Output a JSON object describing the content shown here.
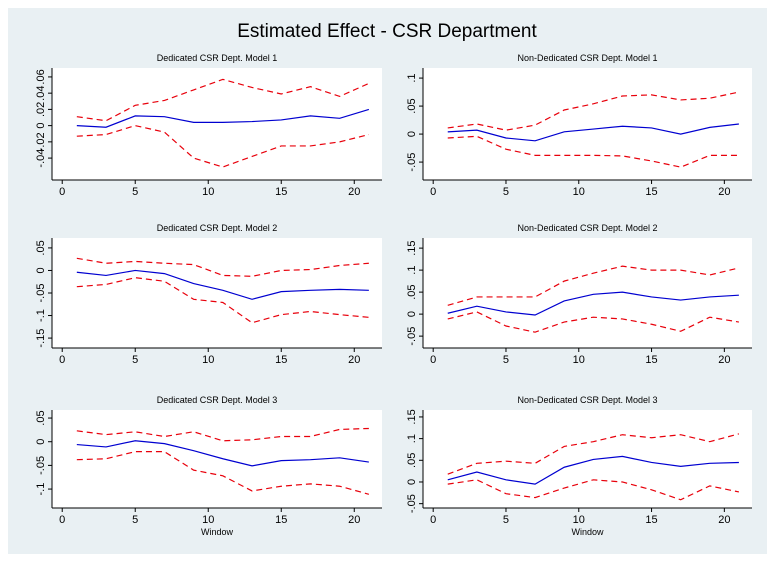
{
  "title": "Estimated Effect - CSR Department",
  "chart_data": [
    {
      "type": "line",
      "title": "Dedicated CSR Dept. Model 1",
      "x": [
        1,
        3,
        5,
        7,
        9,
        11,
        13,
        15,
        17,
        19,
        21
      ],
      "xlim": [
        -0.7,
        21.9
      ],
      "xticks": [
        0,
        5,
        10,
        15,
        20
      ],
      "ylim": [
        -0.067,
        0.071
      ],
      "yticks": [
        {
          "value": -0.04,
          "label": "-.04"
        },
        {
          "value": -0.02,
          "label": "-.02"
        },
        0,
        {
          "value": 0.02,
          "label": ".02"
        },
        {
          "value": 0.04,
          "label": ".04"
        },
        {
          "value": 0.06,
          "label": ".06"
        }
      ],
      "series": [
        {
          "color": "#e8000b",
          "dashed": true,
          "values": [
            0.011,
            0.006,
            0.025,
            0.031,
            0.044,
            0.057,
            0.047,
            0.039,
            0.048,
            0.036,
            0.052
          ]
        },
        {
          "color": "#0000d0",
          "dashed": false,
          "values": [
            0.0,
            -0.002,
            0.012,
            0.011,
            0.004,
            0.004,
            0.005,
            0.007,
            0.012,
            0.009,
            0.02
          ]
        },
        {
          "color": "#e8000b",
          "dashed": true,
          "values": [
            -0.013,
            -0.011,
            0.0,
            -0.008,
            -0.04,
            -0.051,
            -0.038,
            -0.025,
            -0.025,
            -0.02,
            -0.011
          ]
        }
      ]
    },
    {
      "type": "line",
      "title": "Non-Dedicated CSR Dept. Model 1",
      "x": [
        1,
        3,
        5,
        7,
        9,
        11,
        13,
        15,
        17,
        19,
        21
      ],
      "xlim": [
        -0.7,
        21.9
      ],
      "xticks": [
        0,
        5,
        10,
        15,
        20
      ],
      "ylim": [
        -0.082,
        0.118
      ],
      "yticks": [
        {
          "value": -0.05,
          "label": "-.05"
        },
        0,
        {
          "value": 0.05,
          "label": ".05"
        },
        {
          "value": 0.1,
          "label": ".1"
        }
      ],
      "series": [
        {
          "color": "#e8000b",
          "dashed": true,
          "values": [
            0.011,
            0.018,
            0.007,
            0.016,
            0.043,
            0.054,
            0.068,
            0.07,
            0.061,
            0.064,
            0.075
          ]
        },
        {
          "color": "#0000d0",
          "dashed": false,
          "values": [
            0.004,
            0.007,
            -0.007,
            -0.012,
            0.004,
            0.009,
            0.014,
            0.011,
            0.0,
            0.012,
            0.018
          ]
        },
        {
          "color": "#e8000b",
          "dashed": true,
          "values": [
            -0.007,
            -0.004,
            -0.027,
            -0.038,
            -0.038,
            -0.038,
            -0.039,
            -0.048,
            -0.059,
            -0.038,
            -0.038
          ]
        }
      ]
    },
    {
      "type": "line",
      "title": "Dedicated CSR Dept. Model 2",
      "x": [
        1,
        3,
        5,
        7,
        9,
        11,
        13,
        15,
        17,
        19,
        21
      ],
      "xlim": [
        -0.7,
        21.9
      ],
      "xticks": [
        0,
        5,
        10,
        15,
        20
      ],
      "ylim": [
        -0.172,
        0.072
      ],
      "yticks": [
        {
          "value": -0.15,
          "label": "-.15"
        },
        {
          "value": -0.1,
          "label": "-.1"
        },
        {
          "value": -0.05,
          "label": "-.05"
        },
        0,
        {
          "value": 0.05,
          "label": ".05"
        }
      ],
      "series": [
        {
          "color": "#e8000b",
          "dashed": true,
          "values": [
            0.027,
            0.016,
            0.02,
            0.016,
            0.013,
            -0.011,
            -0.013,
            0.0,
            0.002,
            0.011,
            0.016
          ]
        },
        {
          "color": "#0000d0",
          "dashed": false,
          "values": [
            -0.004,
            -0.011,
            0.0,
            -0.007,
            -0.029,
            -0.044,
            -0.064,
            -0.047,
            -0.044,
            -0.042,
            -0.044
          ]
        },
        {
          "color": "#e8000b",
          "dashed": true,
          "values": [
            -0.036,
            -0.031,
            -0.016,
            -0.024,
            -0.064,
            -0.071,
            -0.116,
            -0.098,
            -0.091,
            -0.098,
            -0.104
          ]
        }
      ]
    },
    {
      "type": "line",
      "title": "Non-Dedicated CSR Dept. Model 2",
      "x": [
        1,
        3,
        5,
        7,
        9,
        11,
        13,
        15,
        17,
        19,
        21
      ],
      "xlim": [
        -0.7,
        21.9
      ],
      "xticks": [
        0,
        5,
        10,
        15,
        20
      ],
      "ylim": [
        -0.077,
        0.173
      ],
      "yticks": [
        {
          "value": -0.05,
          "label": "-.05"
        },
        0,
        {
          "value": 0.05,
          "label": ".05"
        },
        {
          "value": 0.1,
          "label": ".1"
        },
        {
          "value": 0.15,
          "label": ".15"
        }
      ],
      "series": [
        {
          "color": "#e8000b",
          "dashed": true,
          "values": [
            0.02,
            0.039,
            0.039,
            0.039,
            0.075,
            0.093,
            0.109,
            0.1,
            0.1,
            0.089,
            0.105
          ]
        },
        {
          "color": "#0000d0",
          "dashed": false,
          "values": [
            0.002,
            0.018,
            0.005,
            -0.002,
            0.03,
            0.045,
            0.05,
            0.039,
            0.032,
            0.039,
            0.043
          ]
        },
        {
          "color": "#e8000b",
          "dashed": true,
          "values": [
            -0.011,
            0.005,
            -0.027,
            -0.041,
            -0.018,
            -0.007,
            -0.011,
            -0.023,
            -0.039,
            -0.007,
            -0.018
          ]
        }
      ]
    },
    {
      "type": "line",
      "title": "Dedicated CSR Dept. Model 3",
      "xlabel": "Window",
      "x": [
        1,
        3,
        5,
        7,
        9,
        11,
        13,
        15,
        17,
        19,
        21
      ],
      "xlim": [
        -0.7,
        21.9
      ],
      "xticks": [
        0,
        5,
        10,
        15,
        20
      ],
      "ylim": [
        -0.14,
        0.067
      ],
      "yticks": [
        {
          "value": -0.1,
          "label": "-.1"
        },
        {
          "value": -0.05,
          "label": "-.05"
        },
        0,
        {
          "value": 0.05,
          "label": ".05"
        }
      ],
      "series": [
        {
          "color": "#e8000b",
          "dashed": true,
          "values": [
            0.023,
            0.015,
            0.021,
            0.011,
            0.021,
            0.002,
            0.004,
            0.011,
            0.011,
            0.026,
            0.028
          ]
        },
        {
          "color": "#0000d0",
          "dashed": false,
          "values": [
            -0.006,
            -0.011,
            0.002,
            -0.004,
            -0.019,
            -0.036,
            -0.051,
            -0.04,
            -0.038,
            -0.034,
            -0.043
          ]
        },
        {
          "color": "#e8000b",
          "dashed": true,
          "values": [
            -0.038,
            -0.036,
            -0.021,
            -0.021,
            -0.06,
            -0.072,
            -0.104,
            -0.094,
            -0.089,
            -0.094,
            -0.111
          ]
        }
      ]
    },
    {
      "type": "line",
      "title": "Non-Dedicated CSR Dept. Model 3",
      "xlabel": "Window",
      "x": [
        1,
        3,
        5,
        7,
        9,
        11,
        13,
        15,
        17,
        19,
        21
      ],
      "xlim": [
        -0.7,
        21.9
      ],
      "xticks": [
        0,
        5,
        10,
        15,
        20
      ],
      "ylim": [
        -0.06,
        0.166
      ],
      "yticks": [
        {
          "value": -0.05,
          "label": "-.05"
        },
        0,
        {
          "value": 0.05,
          "label": ".05"
        },
        {
          "value": 0.1,
          "label": ".1"
        },
        {
          "value": 0.15,
          "label": ".15"
        }
      ],
      "series": [
        {
          "color": "#e8000b",
          "dashed": true,
          "values": [
            0.018,
            0.043,
            0.048,
            0.043,
            0.082,
            0.093,
            0.109,
            0.102,
            0.109,
            0.093,
            0.111
          ]
        },
        {
          "color": "#0000d0",
          "dashed": false,
          "values": [
            0.005,
            0.023,
            0.005,
            -0.005,
            0.034,
            0.052,
            0.059,
            0.045,
            0.036,
            0.043,
            0.045
          ]
        },
        {
          "color": "#e8000b",
          "dashed": true,
          "values": [
            -0.005,
            0.005,
            -0.027,
            -0.036,
            -0.014,
            0.005,
            0.0,
            -0.018,
            -0.041,
            -0.009,
            -0.023
          ]
        }
      ]
    }
  ]
}
